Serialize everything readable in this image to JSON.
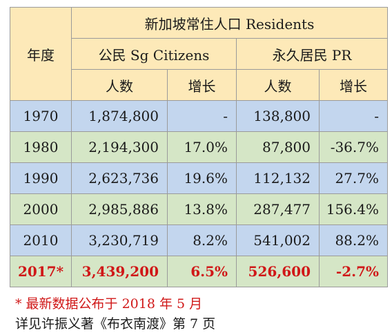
{
  "table": {
    "header": {
      "year": "年度",
      "residents": "新加坡常住人口 Residents",
      "citizens": "公民 Sg Citizens",
      "pr": "永久居民 PR",
      "count": "人数",
      "growth": "增长"
    },
    "rows": [
      {
        "year": "1970",
        "cit_count": "1,874,800",
        "cit_growth": "-",
        "pr_count": "138,800",
        "pr_growth": "-",
        "color": "blue"
      },
      {
        "year": "1980",
        "cit_count": "2,194,300",
        "cit_growth": "17.0%",
        "pr_count": "87,800",
        "pr_growth": "-36.7%",
        "color": "green"
      },
      {
        "year": "1990",
        "cit_count": "2,623,736",
        "cit_growth": "19.6%",
        "pr_count": "112,132",
        "pr_growth": "27.7%",
        "color": "blue"
      },
      {
        "year": "2000",
        "cit_count": "2,985,886",
        "cit_growth": "13.8%",
        "pr_count": "287,477",
        "pr_growth": "156.4%",
        "color": "green"
      },
      {
        "year": "2010",
        "cit_count": "3,230,719",
        "cit_growth": "8.2%",
        "pr_count": "541,002",
        "pr_growth": "88.2%",
        "color": "blue"
      },
      {
        "year": "2017*",
        "cit_count": "3,439,200",
        "cit_growth": "6.5%",
        "pr_count": "526,600",
        "pr_growth": "-2.7%",
        "color": "green",
        "highlight": true
      }
    ]
  },
  "notes": {
    "footnote": "* 最新数据公布于 2018 年 5 月",
    "source": "详见许振义著《布衣南渡》第 7 页"
  },
  "colors": {
    "header_bg": "#fde9b8",
    "row_blue": "#c3d6ee",
    "row_green": "#d5e6c6",
    "highlight_text": "#d01818"
  }
}
